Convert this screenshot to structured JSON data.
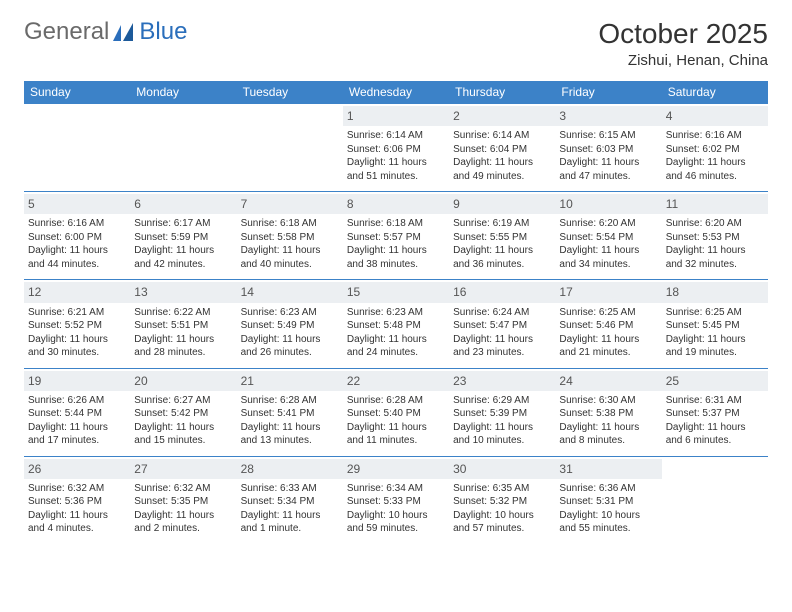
{
  "brand": {
    "general": "General",
    "blue": "Blue"
  },
  "title": "October 2025",
  "location": "Zishui, Henan, China",
  "colors": {
    "header_bg": "#3c82c8",
    "header_text": "#ffffff",
    "daynum_bg": "#eceff2",
    "border": "#3c82c8",
    "text": "#333333",
    "logo_gray": "#6a6a6a",
    "logo_blue": "#2a6ebb"
  },
  "typography": {
    "title_fontsize": 28,
    "subtitle_fontsize": 15,
    "dayheader_fontsize": 12,
    "daynum_fontsize": 12,
    "body_fontsize": 10
  },
  "day_headers": [
    "Sunday",
    "Monday",
    "Tuesday",
    "Wednesday",
    "Thursday",
    "Friday",
    "Saturday"
  ],
  "weeks": [
    [
      {
        "num": "",
        "sunrise": "",
        "sunset": "",
        "daylight": ""
      },
      {
        "num": "",
        "sunrise": "",
        "sunset": "",
        "daylight": ""
      },
      {
        "num": "",
        "sunrise": "",
        "sunset": "",
        "daylight": ""
      },
      {
        "num": "1",
        "sunrise": "Sunrise: 6:14 AM",
        "sunset": "Sunset: 6:06 PM",
        "daylight": "Daylight: 11 hours and 51 minutes."
      },
      {
        "num": "2",
        "sunrise": "Sunrise: 6:14 AM",
        "sunset": "Sunset: 6:04 PM",
        "daylight": "Daylight: 11 hours and 49 minutes."
      },
      {
        "num": "3",
        "sunrise": "Sunrise: 6:15 AM",
        "sunset": "Sunset: 6:03 PM",
        "daylight": "Daylight: 11 hours and 47 minutes."
      },
      {
        "num": "4",
        "sunrise": "Sunrise: 6:16 AM",
        "sunset": "Sunset: 6:02 PM",
        "daylight": "Daylight: 11 hours and 46 minutes."
      }
    ],
    [
      {
        "num": "5",
        "sunrise": "Sunrise: 6:16 AM",
        "sunset": "Sunset: 6:00 PM",
        "daylight": "Daylight: 11 hours and 44 minutes."
      },
      {
        "num": "6",
        "sunrise": "Sunrise: 6:17 AM",
        "sunset": "Sunset: 5:59 PM",
        "daylight": "Daylight: 11 hours and 42 minutes."
      },
      {
        "num": "7",
        "sunrise": "Sunrise: 6:18 AM",
        "sunset": "Sunset: 5:58 PM",
        "daylight": "Daylight: 11 hours and 40 minutes."
      },
      {
        "num": "8",
        "sunrise": "Sunrise: 6:18 AM",
        "sunset": "Sunset: 5:57 PM",
        "daylight": "Daylight: 11 hours and 38 minutes."
      },
      {
        "num": "9",
        "sunrise": "Sunrise: 6:19 AM",
        "sunset": "Sunset: 5:55 PM",
        "daylight": "Daylight: 11 hours and 36 minutes."
      },
      {
        "num": "10",
        "sunrise": "Sunrise: 6:20 AM",
        "sunset": "Sunset: 5:54 PM",
        "daylight": "Daylight: 11 hours and 34 minutes."
      },
      {
        "num": "11",
        "sunrise": "Sunrise: 6:20 AM",
        "sunset": "Sunset: 5:53 PM",
        "daylight": "Daylight: 11 hours and 32 minutes."
      }
    ],
    [
      {
        "num": "12",
        "sunrise": "Sunrise: 6:21 AM",
        "sunset": "Sunset: 5:52 PM",
        "daylight": "Daylight: 11 hours and 30 minutes."
      },
      {
        "num": "13",
        "sunrise": "Sunrise: 6:22 AM",
        "sunset": "Sunset: 5:51 PM",
        "daylight": "Daylight: 11 hours and 28 minutes."
      },
      {
        "num": "14",
        "sunrise": "Sunrise: 6:23 AM",
        "sunset": "Sunset: 5:49 PM",
        "daylight": "Daylight: 11 hours and 26 minutes."
      },
      {
        "num": "15",
        "sunrise": "Sunrise: 6:23 AM",
        "sunset": "Sunset: 5:48 PM",
        "daylight": "Daylight: 11 hours and 24 minutes."
      },
      {
        "num": "16",
        "sunrise": "Sunrise: 6:24 AM",
        "sunset": "Sunset: 5:47 PM",
        "daylight": "Daylight: 11 hours and 23 minutes."
      },
      {
        "num": "17",
        "sunrise": "Sunrise: 6:25 AM",
        "sunset": "Sunset: 5:46 PM",
        "daylight": "Daylight: 11 hours and 21 minutes."
      },
      {
        "num": "18",
        "sunrise": "Sunrise: 6:25 AM",
        "sunset": "Sunset: 5:45 PM",
        "daylight": "Daylight: 11 hours and 19 minutes."
      }
    ],
    [
      {
        "num": "19",
        "sunrise": "Sunrise: 6:26 AM",
        "sunset": "Sunset: 5:44 PM",
        "daylight": "Daylight: 11 hours and 17 minutes."
      },
      {
        "num": "20",
        "sunrise": "Sunrise: 6:27 AM",
        "sunset": "Sunset: 5:42 PM",
        "daylight": "Daylight: 11 hours and 15 minutes."
      },
      {
        "num": "21",
        "sunrise": "Sunrise: 6:28 AM",
        "sunset": "Sunset: 5:41 PM",
        "daylight": "Daylight: 11 hours and 13 minutes."
      },
      {
        "num": "22",
        "sunrise": "Sunrise: 6:28 AM",
        "sunset": "Sunset: 5:40 PM",
        "daylight": "Daylight: 11 hours and 11 minutes."
      },
      {
        "num": "23",
        "sunrise": "Sunrise: 6:29 AM",
        "sunset": "Sunset: 5:39 PM",
        "daylight": "Daylight: 11 hours and 10 minutes."
      },
      {
        "num": "24",
        "sunrise": "Sunrise: 6:30 AM",
        "sunset": "Sunset: 5:38 PM",
        "daylight": "Daylight: 11 hours and 8 minutes."
      },
      {
        "num": "25",
        "sunrise": "Sunrise: 6:31 AM",
        "sunset": "Sunset: 5:37 PM",
        "daylight": "Daylight: 11 hours and 6 minutes."
      }
    ],
    [
      {
        "num": "26",
        "sunrise": "Sunrise: 6:32 AM",
        "sunset": "Sunset: 5:36 PM",
        "daylight": "Daylight: 11 hours and 4 minutes."
      },
      {
        "num": "27",
        "sunrise": "Sunrise: 6:32 AM",
        "sunset": "Sunset: 5:35 PM",
        "daylight": "Daylight: 11 hours and 2 minutes."
      },
      {
        "num": "28",
        "sunrise": "Sunrise: 6:33 AM",
        "sunset": "Sunset: 5:34 PM",
        "daylight": "Daylight: 11 hours and 1 minute."
      },
      {
        "num": "29",
        "sunrise": "Sunrise: 6:34 AM",
        "sunset": "Sunset: 5:33 PM",
        "daylight": "Daylight: 10 hours and 59 minutes."
      },
      {
        "num": "30",
        "sunrise": "Sunrise: 6:35 AM",
        "sunset": "Sunset: 5:32 PM",
        "daylight": "Daylight: 10 hours and 57 minutes."
      },
      {
        "num": "31",
        "sunrise": "Sunrise: 6:36 AM",
        "sunset": "Sunset: 5:31 PM",
        "daylight": "Daylight: 10 hours and 55 minutes."
      },
      {
        "num": "",
        "sunrise": "",
        "sunset": "",
        "daylight": ""
      }
    ]
  ]
}
